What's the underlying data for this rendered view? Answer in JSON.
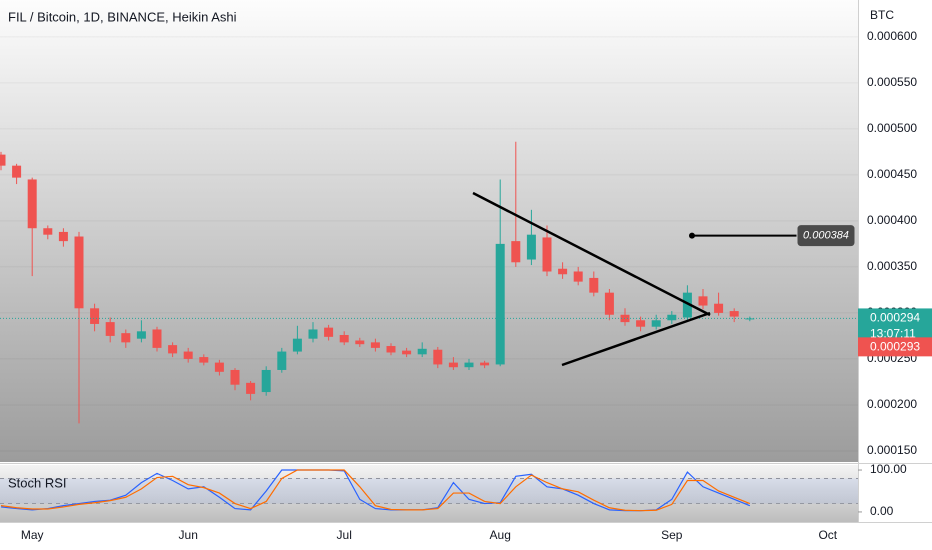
{
  "chart_data": [
    {
      "type": "candlestick",
      "title": "FIL / Bitcoin, 1D, BINANCE, Heikin Ashi",
      "y_unit": "BTC",
      "categories": [
        null,
        null,
        "May",
        null,
        null,
        null,
        null,
        null,
        null,
        null,
        null,
        null,
        "Jun",
        null,
        null,
        null,
        null,
        null,
        null,
        null,
        null,
        null,
        "Jul",
        null,
        null,
        null,
        null,
        null,
        null,
        null,
        null,
        null,
        "Aug",
        null,
        null,
        null,
        null,
        null,
        null,
        null,
        null,
        null,
        null,
        "Sep",
        null,
        null,
        null,
        null,
        null,
        null,
        null,
        null,
        null,
        "Oct"
      ],
      "open": [
        0.000472,
        0.00046,
        0.000445,
        0.000392,
        0.000388,
        0.000383,
        0.000305,
        0.00029,
        0.000278,
        0.000272,
        0.000282,
        0.000265,
        0.000258,
        0.000252,
        0.000246,
        0.000238,
        0.000224,
        0.000214,
        0.000238,
        0.000258,
        0.000272,
        0.000284,
        0.000276,
        0.00027,
        0.000268,
        0.000264,
        0.000259,
        0.000255,
        0.00026,
        0.000246,
        0.000241,
        0.000246,
        0.000244,
        0.000378,
        0.000358,
        0.000382,
        0.000348,
        0.000345,
        0.000338,
        0.000322,
        0.000298,
        0.000292,
        0.000285,
        0.000292,
        0.000295,
        0.000318,
        0.00031,
        0.000302,
        0.000293,
        null,
        null,
        null,
        null,
        null
      ],
      "high": [
        0.000475,
        0.000462,
        0.000447,
        0.000395,
        0.000392,
        0.000388,
        0.00031,
        0.000295,
        0.000282,
        0.000292,
        0.000285,
        0.000268,
        0.000262,
        0.000255,
        0.000249,
        0.00024,
        0.000226,
        0.000242,
        0.000262,
        0.000286,
        0.00029,
        0.000287,
        0.00028,
        0.000273,
        0.000272,
        0.000267,
        0.000262,
        0.000268,
        0.000263,
        0.000252,
        0.00025,
        0.000248,
        0.000445,
        0.000486,
        0.000412,
        0.000395,
        0.000355,
        0.00035,
        0.000345,
        0.000326,
        0.000305,
        0.000296,
        0.000298,
        0.000302,
        0.00033,
        0.000326,
        0.000322,
        0.000305,
        0.000296,
        null,
        null,
        null,
        null,
        null
      ],
      "low": [
        0.000455,
        0.00044,
        0.00034,
        0.00038,
        0.000372,
        0.00018,
        0.00028,
        0.000268,
        0.000262,
        0.000268,
        0.000258,
        0.000252,
        0.000246,
        0.000243,
        0.000232,
        0.000216,
        0.000205,
        0.00021,
        0.000235,
        0.000255,
        0.000268,
        0.00027,
        0.000265,
        0.000263,
        0.000258,
        0.000254,
        0.000252,
        0.000252,
        0.00024,
        0.000238,
        0.000238,
        0.00024,
        0.000242,
        0.00035,
        0.000352,
        0.00034,
        0.000337,
        0.00033,
        0.000318,
        0.000292,
        0.000286,
        0.00028,
        0.000282,
        0.000288,
        0.000292,
        0.000304,
        0.000297,
        0.00029,
        0.000291,
        null,
        null,
        null,
        null,
        null
      ],
      "close": [
        0.00046,
        0.000447,
        0.000392,
        0.000385,
        0.000378,
        0.000305,
        0.000288,
        0.000275,
        0.000268,
        0.00028,
        0.000262,
        0.000256,
        0.00025,
        0.000246,
        0.000236,
        0.000222,
        0.000212,
        0.000238,
        0.000258,
        0.000272,
        0.000282,
        0.000274,
        0.000268,
        0.000266,
        0.000262,
        0.000257,
        0.000255,
        0.000261,
        0.000244,
        0.000241,
        0.000246,
        0.000243,
        0.000375,
        0.000355,
        0.000385,
        0.000345,
        0.000342,
        0.000334,
        0.000322,
        0.000298,
        0.00029,
        0.000285,
        0.000292,
        0.000298,
        0.000322,
        0.000308,
        0.0003,
        0.000296,
        0.000294,
        null,
        null,
        null,
        null,
        null
      ],
      "up_color": "#26a69a",
      "down_color": "#ef5350",
      "ylim": [
        0.000138,
        0.00064
      ],
      "yticks": [
        {
          "value": 0.00015,
          "label": "0.000150"
        },
        {
          "value": 0.0002,
          "label": "0.000200"
        },
        {
          "value": 0.00025,
          "label": "0.000250"
        },
        {
          "value": 0.0003,
          "label": "0.000300"
        },
        {
          "value": 0.00035,
          "label": "0.000350"
        },
        {
          "value": 0.0004,
          "label": "0.000400"
        },
        {
          "value": 0.00045,
          "label": "0.000450"
        },
        {
          "value": 0.0005,
          "label": "0.000500"
        },
        {
          "value": 0.00055,
          "label": "0.000550"
        },
        {
          "value": 0.0006,
          "label": "0.000600"
        }
      ],
      "last_price": {
        "value": 0.000294,
        "label": "0.000294"
      },
      "countdown": "13:07:11",
      "prev_price": {
        "value": 0.000293,
        "label": "0.000293"
      },
      "annotation": {
        "value": 0.000384,
        "label": "0.000384"
      }
    },
    {
      "type": "line",
      "title": "Stoch RSI",
      "series": [
        {
          "color": "#2962ff",
          "values": [
            12,
            8,
            5,
            8,
            15,
            20,
            25,
            28,
            40,
            70,
            92,
            75,
            55,
            60,
            35,
            8,
            5,
            50,
            100,
            100,
            100,
            100,
            98,
            30,
            8,
            5,
            5,
            5,
            10,
            70,
            30,
            20,
            22,
            85,
            90,
            60,
            55,
            40,
            20,
            5,
            3,
            3,
            5,
            30,
            95,
            60,
            45,
            30,
            15,
            null,
            null,
            null,
            null,
            null
          ]
        },
        {
          "color": "#ff6d00",
          "values": [
            15,
            10,
            7,
            7,
            12,
            18,
            22,
            27,
            35,
            55,
            82,
            85,
            65,
            58,
            45,
            20,
            8,
            25,
            80,
            100,
            100,
            100,
            100,
            60,
            15,
            6,
            5,
            5,
            8,
            45,
            45,
            25,
            20,
            60,
            88,
            70,
            55,
            48,
            28,
            10,
            4,
            3,
            4,
            18,
            75,
            75,
            50,
            35,
            20,
            null,
            null,
            null,
            null,
            null
          ]
        }
      ],
      "bands": [
        20,
        80
      ],
      "ylim": [
        -24,
        112
      ],
      "yticks": [
        {
          "value": 100,
          "label": "100.00"
        },
        {
          "value": 0,
          "label": "0.00"
        }
      ]
    }
  ]
}
